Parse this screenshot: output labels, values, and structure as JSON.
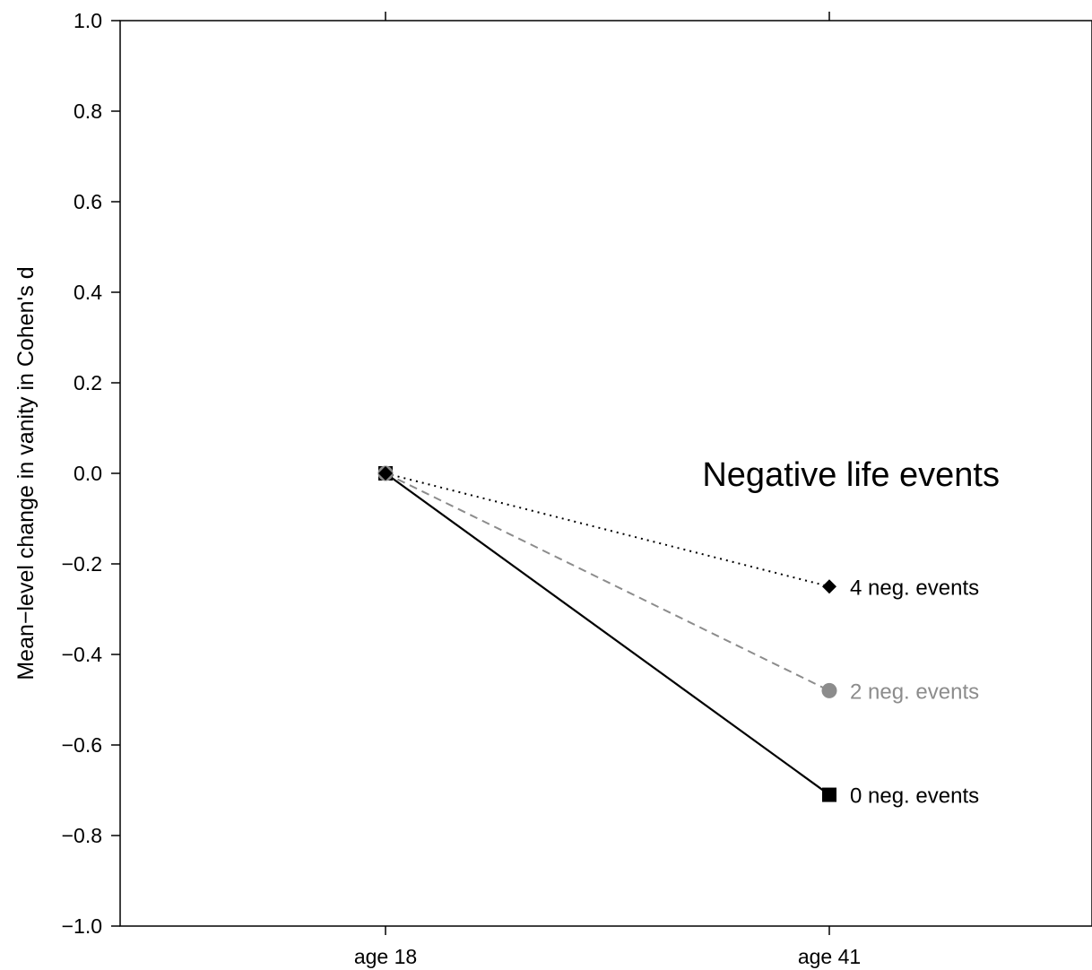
{
  "chart_data": {
    "type": "line",
    "x": [
      "age 18",
      "age 41"
    ],
    "ylabel": "Mean−level change in vanity in Cohen's d",
    "xlabel": "",
    "ylim": [
      -1.0,
      1.0
    ],
    "yticks": [
      "1.0",
      "0.8",
      "0.6",
      "0.4",
      "0.2",
      "0.0",
      "−0.2",
      "−0.4",
      "−0.6",
      "−0.8",
      "−1.0"
    ],
    "ytick_values": [
      1.0,
      0.8,
      0.6,
      0.4,
      0.2,
      0.0,
      -0.2,
      -0.4,
      -0.6,
      -0.8,
      -1.0
    ],
    "grid": false,
    "legend_title": "Negative life events",
    "series": [
      {
        "name": "4 neg. events",
        "values": [
          0.0,
          -0.25
        ],
        "color": "#000000",
        "line_style": "dotted",
        "marker": "diamond"
      },
      {
        "name": "2 neg. events",
        "values": [
          0.0,
          -0.48
        ],
        "color": "#8c8c8c",
        "line_style": "dashed",
        "marker": "circle"
      },
      {
        "name": "0 neg. events",
        "values": [
          0.0,
          -0.71
        ],
        "color": "#000000",
        "line_style": "solid",
        "marker": "square"
      }
    ]
  }
}
